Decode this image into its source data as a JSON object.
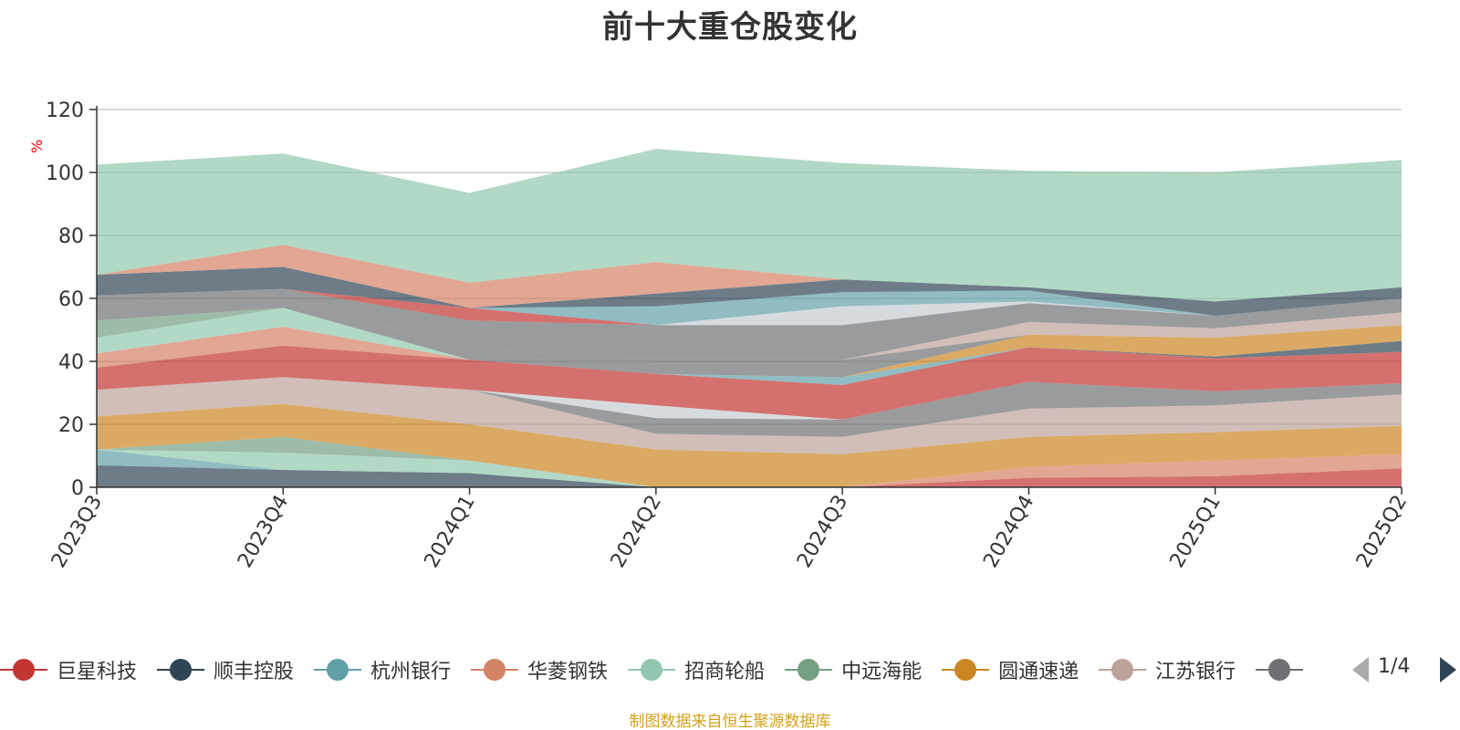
{
  "title": "前十大重仓股变化",
  "source": "制图数据来自恒生聚源数据库",
  "pager": {
    "text": "1/4"
  },
  "legend": [
    {
      "name": "巨星科技",
      "color": "#c23531"
    },
    {
      "name": "顺丰控股",
      "color": "#2f4554"
    },
    {
      "name": "杭州银行",
      "color": "#61a0a8"
    },
    {
      "name": "华菱钢铁",
      "color": "#d48265"
    },
    {
      "name": "招商轮船",
      "color": "#91c7ae"
    },
    {
      "name": "中远海能",
      "color": "#749f83"
    },
    {
      "name": "圆通速递",
      "color": "#ca8622"
    },
    {
      "name": "江苏银行",
      "color": "#bda29a"
    },
    {
      "name": "",
      "color": "#6e7074"
    }
  ],
  "chart_data": {
    "type": "area",
    "stacked": true,
    "title": "前十大重仓股变化",
    "ylabel": "%",
    "ylim": [
      0,
      120
    ],
    "yticks": [
      0,
      20,
      40,
      60,
      80,
      100,
      120
    ],
    "grid": true,
    "x": [
      "2023Q3",
      "2023Q4",
      "2024Q1",
      "2024Q2",
      "2024Q3",
      "2024Q4",
      "2025Q1",
      "2025Q2"
    ],
    "series": [
      {
        "name": "巨星科技",
        "color": "#c23531",
        "values": [
          0,
          0,
          0,
          0,
          0,
          3,
          3.5,
          6
        ]
      },
      {
        "name": "顺丰控股",
        "color": "#2f4554",
        "values": [
          7,
          5.5,
          4.5,
          0,
          0,
          0,
          0,
          0
        ]
      },
      {
        "name": "华菱钢铁",
        "color": "#d48265",
        "values": [
          0,
          0,
          0,
          0,
          0,
          3.5,
          5,
          4.5
        ]
      },
      {
        "name": "杭州银行",
        "color": "#61a0a8",
        "values": [
          5,
          0,
          0,
          0,
          0,
          0,
          0,
          0
        ]
      },
      {
        "name": "招商轮船",
        "color": "#91c7ae",
        "values": [
          0,
          5.5,
          4,
          0,
          0,
          0,
          0,
          0
        ]
      },
      {
        "name": "中远海能",
        "color": "#749f83",
        "values": [
          0,
          5,
          0,
          0,
          0,
          0,
          0,
          0
        ]
      },
      {
        "name": "圆通速递",
        "color": "#ca8622",
        "values": [
          10.5,
          10.5,
          11.5,
          12,
          10.5,
          9.5,
          9,
          9
        ]
      },
      {
        "name": "江苏银行",
        "color": "#bda29a",
        "values": [
          8.5,
          8.5,
          11,
          5,
          5.5,
          9,
          8.5,
          10
        ]
      },
      {
        "name": "",
        "color": "#6e7074",
        "values": [
          0,
          0,
          0,
          5,
          5.5,
          8.5,
          4.5,
          3.5
        ]
      },
      {
        "name": "",
        "color": "#c4ccd3",
        "values": [
          0,
          0,
          0,
          4,
          0,
          0,
          0,
          0
        ]
      },
      {
        "name": "巨星科技",
        "color": "#c23531",
        "values": [
          7,
          10,
          9.5,
          10,
          11,
          11,
          10.5,
          10
        ]
      },
      {
        "name": "顺丰控股",
        "color": "#2f4554",
        "values": [
          0,
          0,
          0,
          0,
          0,
          0,
          0.5,
          3.5
        ]
      },
      {
        "name": "杭州银行",
        "color": "#61a0a8",
        "values": [
          0,
          0,
          0,
          0,
          2.5,
          0,
          0,
          0
        ]
      },
      {
        "name": "华菱钢铁",
        "color": "#d48265",
        "values": [
          4.5,
          6,
          0,
          0,
          0,
          0,
          0,
          0
        ]
      },
      {
        "name": "圆通速递",
        "color": "#ca8622",
        "values": [
          0,
          0,
          0,
          0,
          0,
          4,
          6,
          5
        ]
      },
      {
        "name": "招商轮船",
        "color": "#91c7ae",
        "values": [
          5,
          6,
          0,
          0,
          0,
          0,
          0,
          0
        ]
      },
      {
        "name": "中远海能",
        "color": "#749f83",
        "values": [
          5.5,
          0,
          0,
          0,
          0,
          0,
          0,
          0
        ]
      },
      {
        "name": "",
        "color": "#6e7074",
        "values": [
          5.5,
          3,
          3.5,
          4.5,
          5.5,
          0,
          0,
          0
        ]
      },
      {
        "name": "江苏银行",
        "color": "#bda29a",
        "values": [
          0,
          0,
          0,
          0,
          0,
          4,
          3,
          4
        ]
      },
      {
        "name": "",
        "color": "#6e7074",
        "values": [
          2.5,
          3,
          9,
          11,
          11,
          6,
          4,
          4.5
        ]
      },
      {
        "name": "",
        "color": "#c4ccd3",
        "values": [
          0,
          0,
          0,
          0,
          6,
          0.5,
          0,
          0
        ]
      },
      {
        "name": "巨星科技",
        "color": "#c23531",
        "values": [
          0,
          0,
          4,
          0,
          0,
          0,
          0,
          0
        ]
      },
      {
        "name": "杭州银行",
        "color": "#61a0a8",
        "values": [
          0,
          0,
          0,
          6,
          4.5,
          3.5,
          0,
          0
        ]
      },
      {
        "name": "顺丰控股",
        "color": "#2f4554",
        "values": [
          6.5,
          7,
          0,
          4,
          4,
          1,
          4.5,
          3.5
        ]
      },
      {
        "name": "华菱钢铁",
        "color": "#d48265",
        "values": [
          0,
          7,
          8,
          10,
          0,
          0,
          0,
          0
        ]
      },
      {
        "name": "招商轮船",
        "color": "#91c7ae",
        "values": [
          35,
          29,
          28.5,
          36,
          37,
          37,
          41,
          40.5
        ]
      }
    ]
  }
}
